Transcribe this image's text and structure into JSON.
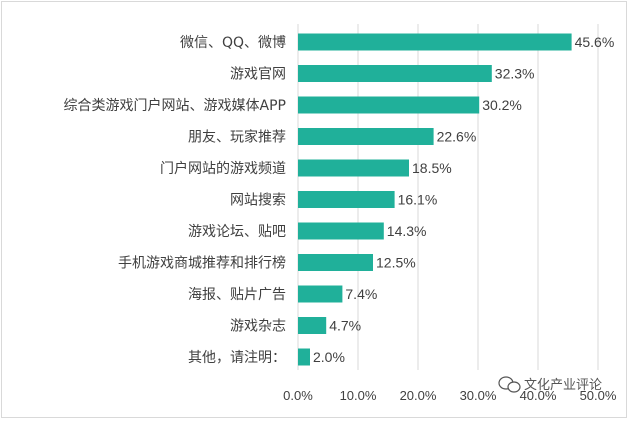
{
  "chart_data": {
    "type": "bar",
    "orientation": "horizontal",
    "categories": [
      "微信、QQ、微博",
      "游戏官网",
      "综合类游戏门户网站、游戏媒体APP",
      "朋友、玩家推荐",
      "门户网站的游戏频道",
      "网站搜索",
      "游戏论坛、贴吧",
      "手机游戏商城推荐和排行榜",
      "海报、贴片广告",
      "游戏杂志",
      "其他，请注明："
    ],
    "values": [
      45.6,
      32.3,
      30.2,
      22.6,
      18.5,
      16.1,
      14.3,
      12.5,
      7.4,
      4.7,
      2.0
    ],
    "value_labels": [
      "45.6%",
      "32.3%",
      "30.2%",
      "22.6%",
      "18.5%",
      "16.1%",
      "14.3%",
      "12.5%",
      "7.4%",
      "4.7%",
      "2.0%"
    ],
    "x_ticks": [
      0,
      10,
      20,
      30,
      40,
      50
    ],
    "x_tick_labels": [
      "0.0%",
      "10.0%",
      "20.0%",
      "30.0%",
      "40.0%",
      "50.0%"
    ],
    "xlim": [
      0,
      50
    ],
    "grid": true,
    "bar_color": "#20b09a",
    "title": "",
    "xlabel": "",
    "ylabel": ""
  },
  "watermark": {
    "text": "文化产业评论",
    "icon": "wechat-icon"
  }
}
